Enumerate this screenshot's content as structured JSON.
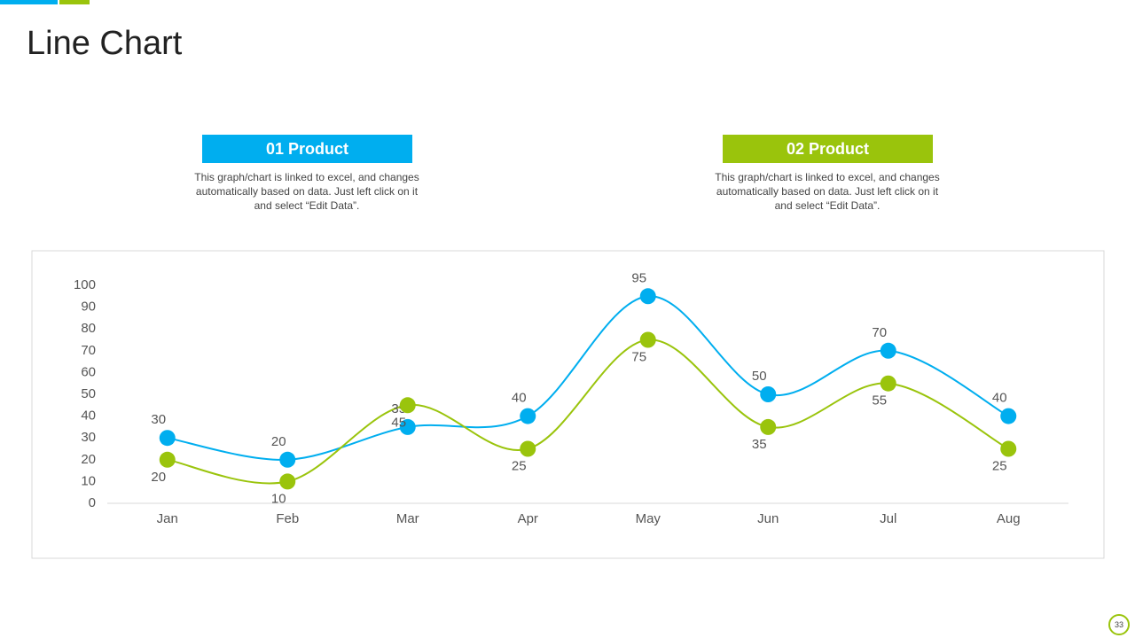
{
  "title": "Line Chart",
  "panels": [
    {
      "text": "This graph/chart is linked to excel, and changes automatically based on data. Just left click on it and select “Edit Data”."
    },
    {
      "text": "This graph/chart is linked to excel, and changes automatically based on data. Just left click on it and select “Edit Data”."
    }
  ],
  "page_number": 33,
  "chart_data": {
    "type": "line",
    "categories": [
      "Jan",
      "Feb",
      "Mar",
      "Apr",
      "May",
      "Jun",
      "Jul",
      "Aug"
    ],
    "series": [
      {
        "name": "01 Product",
        "color": "#00aeef",
        "values": [
          30,
          20,
          35,
          40,
          95,
          50,
          70,
          40
        ]
      },
      {
        "name": "02 Product",
        "color": "#9ac40c",
        "values": [
          20,
          10,
          45,
          25,
          75,
          35,
          55,
          25
        ]
      }
    ],
    "ylim": [
      0,
      100
    ],
    "yticks": [
      0,
      10,
      20,
      30,
      40,
      50,
      60,
      70,
      80,
      90,
      100
    ],
    "smooth": true,
    "data_labels": true
  }
}
